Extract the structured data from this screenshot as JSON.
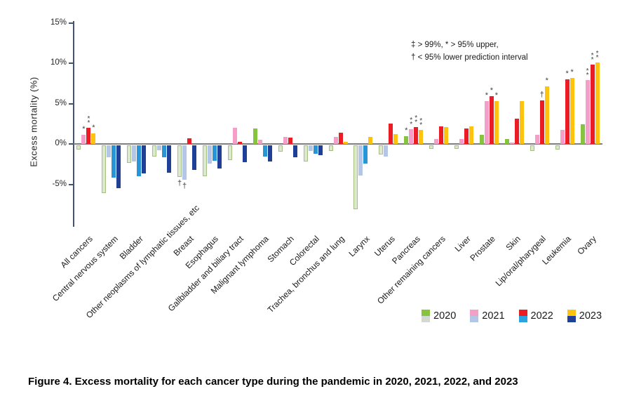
{
  "y_axis": {
    "label": "Excess mortality (%)",
    "ticks": [
      {
        "text": "15%",
        "value": 15
      },
      {
        "text": "10%",
        "value": 10
      },
      {
        "text": "5%",
        "value": 5
      },
      {
        "text": "0%",
        "value": 0
      },
      {
        "text": "-5%",
        "value": -5
      }
    ]
  },
  "annotation": {
    "line1": "‡ > 99%, * > 95% upper,",
    "line2": "† < 95% lower prediction interval"
  },
  "legend": {
    "items": [
      {
        "label": "2020",
        "color_top": "#86c440",
        "color_bottom": "#d3d9d0"
      },
      {
        "label": "2021",
        "color_top": "#f59fc8",
        "color_bottom": "#b3c6e7"
      },
      {
        "label": "2022",
        "color_top": "#ec1c24",
        "color_bottom": "#2aa3df"
      },
      {
        "label": "2023",
        "color_top": "#ffc20e",
        "color_bottom": "#1f4096"
      }
    ]
  },
  "figure_caption": "Figure 4. Excess mortality for each cancer type during the pandemic in 2020, 2021, 2022, and 2023",
  "chart_data": {
    "type": "bar",
    "title": "",
    "xlabel": "",
    "ylabel": "Excess mortality (%)",
    "ylim": [
      -10,
      15
    ],
    "grid": false,
    "legend_position": "bottom-right",
    "significance_note": "‡ > 99%, * > 95% upper, † < 95% lower prediction interval",
    "categories": [
      "All cancers",
      "Central nervous system",
      "Bladder",
      "Other neoplasms of lymphatic tissues, etc",
      "Breast",
      "Esophagus",
      "Gallbladder and biliary tract",
      "Malignant lymphoma",
      "Stomach",
      "Colorectal",
      "Trachea, bronchus and lung",
      "Larynx",
      "Uterus",
      "Pancreas",
      "Other remaining cancers",
      "Liver",
      "Prostate",
      "Skin",
      "Lip/oral/pharygeal",
      "Leukemia",
      "Ovary"
    ],
    "series": [
      {
        "name": "2020",
        "color_positive": "#86c440",
        "color_negative_fill": "#dce9cf",
        "color_negative_border": "#a3c081",
        "values": [
          -0.5,
          -5.9,
          -2.2,
          -1.4,
          -3.9,
          -3.8,
          -1.8,
          1.9,
          -0.8,
          -2.0,
          -0.7,
          -7.9,
          -1.1,
          1.0,
          -0.4,
          -0.4,
          1.1,
          0.6,
          -0.7,
          -0.5,
          2.4
        ],
        "significance": [
          null,
          null,
          null,
          null,
          "†",
          null,
          null,
          null,
          null,
          null,
          null,
          null,
          null,
          "*",
          null,
          null,
          null,
          null,
          null,
          null,
          null
        ]
      },
      {
        "name": "2021",
        "color_positive": "#f59fc8",
        "color_negative_fill": "#b3c6e7",
        "color_negative_border": null,
        "values": [
          1.1,
          -1.5,
          -2.0,
          -0.6,
          -4.3,
          -2.3,
          2.0,
          0.5,
          0.9,
          -0.7,
          0.9,
          -3.7,
          -1.4,
          1.8,
          0.6,
          0.6,
          5.3,
          0.2,
          1.1,
          1.7,
          7.9
        ],
        "significance": [
          "*",
          null,
          null,
          null,
          "†",
          null,
          null,
          null,
          null,
          null,
          null,
          null,
          null,
          "‡",
          null,
          null,
          "*",
          null,
          null,
          null,
          "‡"
        ]
      },
      {
        "name": "2022",
        "color_positive": "#ec1c24",
        "color_negative_fill": "#2795d6",
        "color_negative_border": null,
        "values": [
          2.0,
          -4.0,
          -3.8,
          -1.5,
          0.7,
          -1.9,
          0.3,
          -1.4,
          0.8,
          -1.0,
          1.4,
          -2.3,
          2.5,
          2.1,
          2.2,
          1.9,
          5.9,
          3.1,
          5.4,
          8.0,
          9.8
        ],
        "significance": [
          "‡",
          null,
          null,
          null,
          null,
          null,
          null,
          null,
          null,
          null,
          null,
          null,
          null,
          "‡",
          null,
          null,
          "*",
          null,
          "†",
          "*",
          "‡"
        ]
      },
      {
        "name": "2023",
        "color_positive": "#ffc20e",
        "color_negative_fill": "#1f4096",
        "color_negative_border": null,
        "values": [
          1.3,
          -5.3,
          -3.5,
          -3.4,
          -3.0,
          -2.9,
          -2.1,
          -2.0,
          -1.5,
          -1.2,
          0.3,
          0.9,
          1.2,
          1.7,
          2.1,
          2.2,
          5.3,
          5.3,
          7.1,
          8.2,
          10.1
        ],
        "significance": [
          "*",
          null,
          null,
          null,
          null,
          null,
          null,
          null,
          null,
          null,
          null,
          null,
          null,
          "‡",
          null,
          null,
          "*",
          null,
          "*",
          "*",
          "‡"
        ]
      }
    ]
  }
}
